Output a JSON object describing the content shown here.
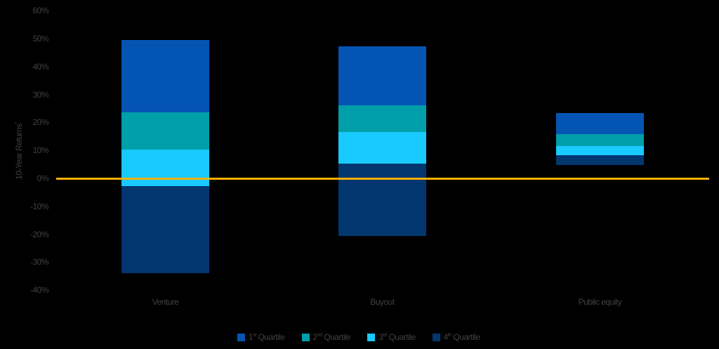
{
  "chart_data": {
    "type": "bar",
    "subtype": "floating-stacked-range",
    "title": "",
    "xlabel": "",
    "ylabel": "10-Year Returns",
    "ylabel_superscript": "*",
    "ylim": [
      -40,
      60
    ],
    "yticks": [
      "60%",
      "50%",
      "40%",
      "30%",
      "20%",
      "10%",
      "0%",
      "-10%",
      "-20%",
      "-30%",
      "-40%"
    ],
    "grid": false,
    "legend_position": "bottom",
    "categories": [
      "Venture",
      "Buyout",
      "Public equity"
    ],
    "boundaries_description": "Each bar spans from the bottom of the 4th quartile to the top of the 1st quartile; values are quartile breakpoints in %",
    "breakpoints": {
      "Venture": {
        "top": 49.5,
        "q1_q2": 23.6,
        "q2_q3": 10.3,
        "q3_q4": -2.8,
        "bottom": -33.9
      },
      "Buyout": {
        "top": 47.2,
        "q1_q2": 26.1,
        "q2_q3": 16.6,
        "q3_q4": 5.3,
        "bottom": -20.6
      },
      "Public equity": {
        "top": 23.4,
        "q1_q2": 15.8,
        "q2_q3": 11.6,
        "q3_q4": 8.3,
        "bottom": 4.8
      }
    },
    "series": [
      {
        "name": "1st Quartile",
        "color": "#0455B3",
        "ranges": [
          [
            23.6,
            49.5
          ],
          [
            26.1,
            47.2
          ],
          [
            15.8,
            23.4
          ]
        ]
      },
      {
        "name": "2nd Quartile",
        "color": "#009FAA",
        "ranges": [
          [
            10.3,
            23.6
          ],
          [
            16.6,
            26.1
          ],
          [
            11.6,
            15.8
          ]
        ]
      },
      {
        "name": "3rd Quartile",
        "color": "#18CAFF",
        "ranges": [
          [
            -2.8,
            10.3
          ],
          [
            5.3,
            16.6
          ],
          [
            8.3,
            11.6
          ]
        ]
      },
      {
        "name": "4th Quartile",
        "color": "#02366F",
        "ranges": [
          [
            -33.9,
            -2.8
          ],
          [
            -20.6,
            5.3
          ],
          [
            4.8,
            8.3
          ]
        ]
      }
    ],
    "reference_line": {
      "y": 0,
      "color": "#FFB000"
    }
  },
  "axis": {
    "ylabel": "10-Year Returns",
    "ylabel_sup": "*",
    "ticks": [
      "60%",
      "50%",
      "40%",
      "30%",
      "20%",
      "10%",
      "0%",
      "-10%",
      "-20%",
      "-30%",
      "-40%"
    ]
  },
  "categories": [
    "Venture",
    "Buyout",
    "Public equity"
  ],
  "legend": [
    {
      "num": "1",
      "sup": "st",
      "label": " Quartile",
      "color": "#0455B3"
    },
    {
      "num": "2",
      "sup": "nd",
      "label": " Quartile",
      "color": "#009FAA"
    },
    {
      "num": "3",
      "sup": "rd",
      "label": " Quartile",
      "color": "#18CAFF"
    },
    {
      "num": "4",
      "sup": "th",
      "label": " Quartile",
      "color": "#02366F"
    }
  ]
}
